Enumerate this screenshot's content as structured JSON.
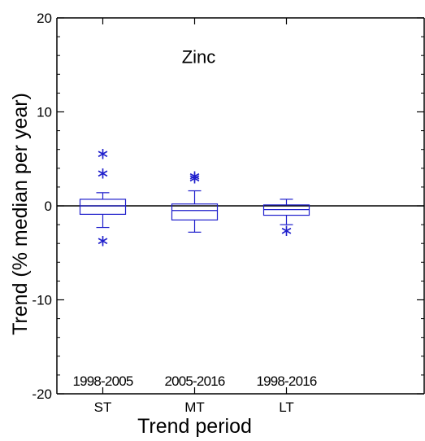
{
  "chart_data": {
    "type": "box",
    "title": "Zinc",
    "xlabel": "Trend period",
    "ylabel": "Trend (% median per year)",
    "ylim": [
      -20,
      20
    ],
    "yticks": [
      -20,
      -10,
      0,
      10,
      20
    ],
    "categories": [
      "ST",
      "MT",
      "LT"
    ],
    "period_labels": [
      "1998-2005",
      "2005-2016",
      "1998-2016"
    ],
    "box_color": "#1f1fcc",
    "reference_line": 0,
    "boxes": [
      {
        "category": "ST",
        "whisker_low": -2.3,
        "q1": -0.9,
        "median": 0.0,
        "q3": 0.7,
        "whisker_high": 1.4,
        "outliers": [
          5.6,
          3.5,
          -3.7
        ]
      },
      {
        "category": "MT",
        "whisker_low": -2.8,
        "q1": -1.5,
        "median": -0.5,
        "q3": 0.2,
        "whisker_high": 1.6,
        "outliers": [
          3.2,
          3.0
        ]
      },
      {
        "category": "LT",
        "whisker_low": -2.0,
        "q1": -1.0,
        "median": -0.4,
        "q3": 0.1,
        "whisker_high": 0.7,
        "outliers": [
          -2.6
        ]
      }
    ]
  }
}
